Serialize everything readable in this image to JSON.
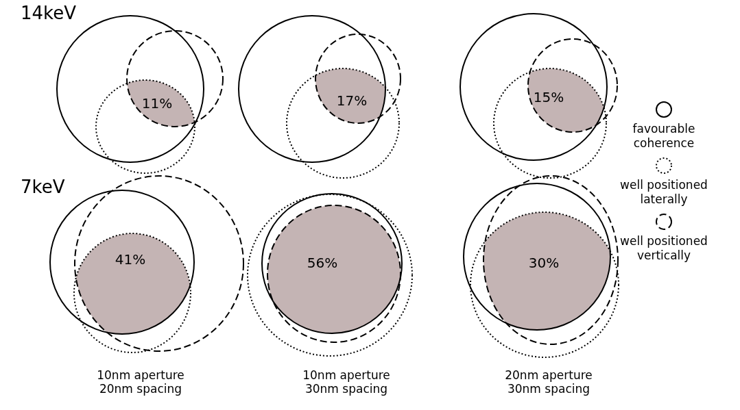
{
  "chart_data": {
    "type": "other",
    "categories": [
      "10nm aperture\n20nm spacing",
      "10nm aperture\n30nm spacing",
      "20nm aperture\n30nm spacing"
    ],
    "series": [
      {
        "values": [
          11,
          17,
          15
        ],
        "value_labels": [
          "11%",
          "17%",
          "15%"
        ]
      },
      {
        "values": [
          41,
          56,
          30
        ],
        "value_labels": [
          "41%",
          "56%",
          "30%"
        ]
      }
    ],
    "annotations": [
      "14keV",
      "7keV",
      "favourable\ncoherence",
      "well positioned\nlaterally",
      "well positioned\nvertically"
    ]
  }
}
